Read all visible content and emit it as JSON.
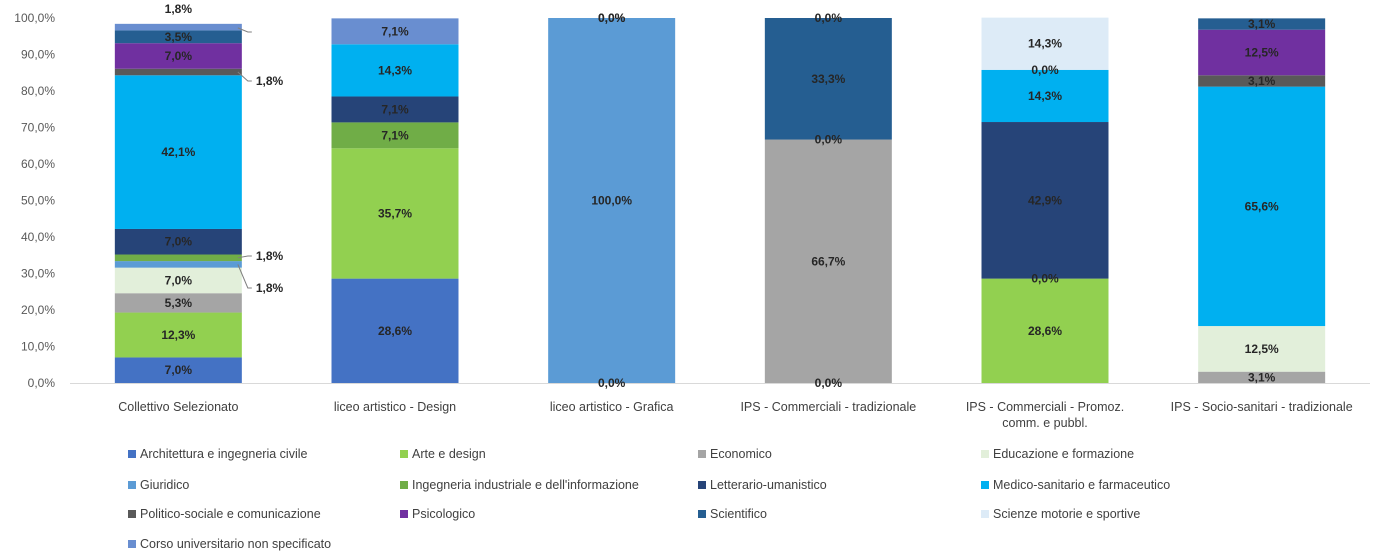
{
  "chart_data": {
    "type": "bar",
    "stacked": true,
    "title": "",
    "xlabel": "",
    "ylabel": "",
    "ylim": [
      0,
      100
    ],
    "y_ticks": [
      "0,0%",
      "10,0%",
      "20,0%",
      "30,0%",
      "40,0%",
      "50,0%",
      "60,0%",
      "70,0%",
      "80,0%",
      "90,0%",
      "100,0%"
    ],
    "grid": false,
    "legend_position": "bottom",
    "categories": [
      [
        "Collettivo Selezionato"
      ],
      [
        "liceo artistico - Design"
      ],
      [
        "liceo artistico - Grafica"
      ],
      [
        "IPS - Commerciali - tradizionale"
      ],
      [
        "IPS - Commerciali - Promoz.",
        "comm. e pubbl."
      ],
      [
        "IPS - Socio-sanitari - tradizionale"
      ]
    ],
    "series": [
      {
        "name": "Architettura e ingegneria civile",
        "color": "#4472C4",
        "values": [
          7.0,
          28.6,
          0,
          0,
          0,
          0
        ],
        "labels": [
          "7,0%",
          "28,6%",
          "",
          "",
          "",
          ""
        ]
      },
      {
        "name": "Arte e design",
        "color": "#92D050",
        "values": [
          12.3,
          35.7,
          0,
          0,
          28.6,
          0
        ],
        "labels": [
          "12,3%",
          "35,7%",
          "0,0%",
          "0,0%",
          "28,6%",
          ""
        ]
      },
      {
        "name": "Economico",
        "color": "#A5A5A5",
        "values": [
          5.3,
          0,
          0,
          66.7,
          0,
          3.1
        ],
        "labels": [
          "5,3%",
          "",
          "",
          "66,7%",
          "0,0%",
          "3,1%"
        ]
      },
      {
        "name": "Educazione e formazione",
        "color": "#E2EFDA",
        "values": [
          7.0,
          0,
          0,
          0,
          0,
          12.5
        ],
        "labels": [
          "7,0%",
          "",
          "",
          "",
          "",
          "12,5%"
        ]
      },
      {
        "name": "Giuridico",
        "color": "#5B9BD5",
        "values": [
          1.8,
          0,
          100.0,
          0,
          0,
          0
        ],
        "labels": [
          "1,8%",
          "",
          "100,0%",
          "",
          "",
          ""
        ]
      },
      {
        "name": "Ingegneria industriale e dell'informazione",
        "color": "#70AD47",
        "values": [
          1.8,
          7.1,
          0,
          0,
          0,
          0
        ],
        "labels": [
          "1,8%",
          "7,1%",
          "",
          "",
          "",
          ""
        ]
      },
      {
        "name": "Letterario-umanistico",
        "color": "#264478",
        "values": [
          7.0,
          7.1,
          0,
          0,
          42.9,
          0
        ],
        "labels": [
          "7,0%",
          "7,1%",
          "",
          "",
          "42,9%",
          ""
        ]
      },
      {
        "name": "Medico-sanitario e farmaceutico",
        "color": "#00B0F0",
        "values": [
          42.1,
          14.3,
          0,
          0,
          14.3,
          65.6
        ],
        "labels": [
          "42,1%",
          "14,3%",
          "",
          "0,0%",
          "14,3%",
          "65,6%"
        ]
      },
      {
        "name": "Politico-sociale e comunicazione",
        "color": "#595959",
        "values": [
          1.8,
          0,
          0,
          0,
          0,
          3.1
        ],
        "labels": [
          "1,8%",
          "",
          "",
          "",
          "",
          "3,1%"
        ]
      },
      {
        "name": "Psicologico",
        "color": "#7030A0",
        "values": [
          7.0,
          0,
          0,
          0,
          0,
          12.5
        ],
        "labels": [
          "7,0%",
          "",
          "",
          "",
          "",
          "12,5%"
        ]
      },
      {
        "name": "Scientifico",
        "color": "#255E91",
        "values": [
          3.5,
          0,
          0,
          33.3,
          0,
          3.1
        ],
        "labels": [
          "3,5%",
          "",
          "0,0%",
          "33,3%",
          "0,0%",
          "3,1%"
        ]
      },
      {
        "name": "Scienze motorie e sportive",
        "color": "#DDEBF7",
        "values": [
          0,
          0,
          0,
          0,
          14.3,
          0
        ],
        "labels": [
          "",
          "",
          "",
          "0,0%",
          "14,3%",
          ""
        ]
      },
      {
        "name": "Corso universitario non specificato",
        "color": "#698ED0",
        "values": [
          1.8,
          7.1,
          0,
          0,
          0,
          0
        ],
        "labels": [
          "1,8%",
          "7,1%",
          "0,0%",
          "",
          "",
          ""
        ]
      }
    ]
  }
}
